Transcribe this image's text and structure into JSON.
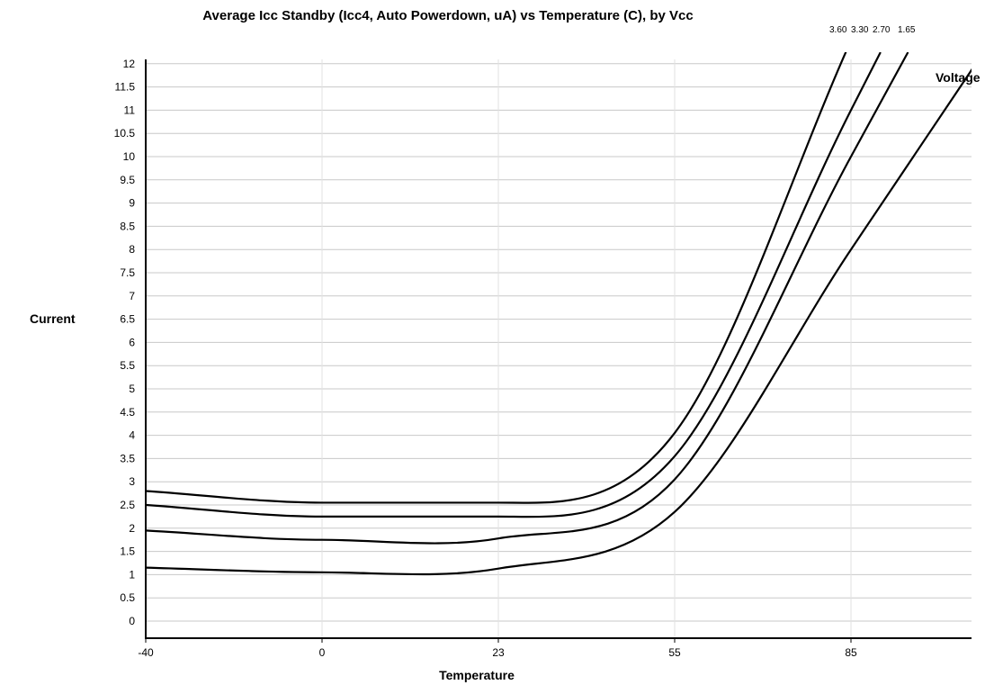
{
  "chart_data": {
    "type": "line",
    "title": "Average Icc Standby (Icc4, Auto Powerdown, uA) vs Temperature (C), by Vcc",
    "xlabel": "Temperature",
    "ylabel": "Current",
    "legend_title": "Voltage",
    "x_categories": [
      "-40",
      "0",
      "23",
      "55",
      "85"
    ],
    "y_ticks": [
      "0",
      "0.5",
      "1",
      "1.5",
      "2",
      "2.5",
      "3",
      "3.5",
      "4",
      "4.5",
      "5",
      "5.5",
      "6",
      "6.5",
      "7",
      "7.5",
      "8",
      "8.5",
      "9",
      "9.5",
      "10",
      "10.5",
      "11",
      "11.5",
      "12"
    ],
    "ylim": [
      0,
      12
    ],
    "grid": "horizontal",
    "series": [
      {
        "name": "3.60",
        "values": [
          2.8,
          2.55,
          2.55,
          4.05,
          12.5
        ]
      },
      {
        "name": "3.30",
        "values": [
          2.5,
          2.25,
          2.25,
          3.55,
          11.0
        ]
      },
      {
        "name": "2.70",
        "values": [
          1.95,
          1.75,
          1.78,
          3.05,
          10.0
        ]
      },
      {
        "name": "1.65",
        "values": [
          1.15,
          1.05,
          1.13,
          2.35,
          8.0
        ]
      }
    ]
  }
}
